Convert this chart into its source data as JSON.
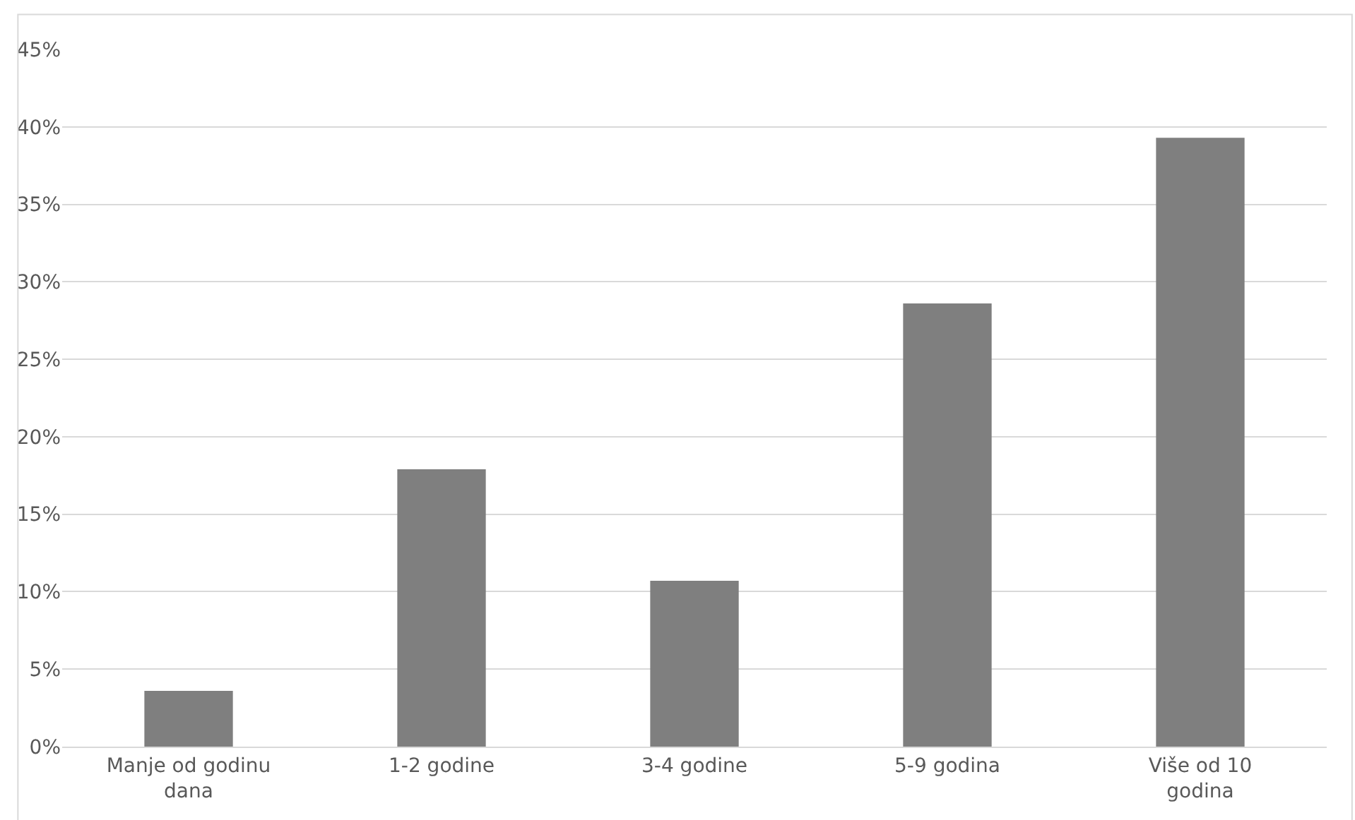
{
  "chart_data": {
    "type": "bar",
    "categories": [
      "Manje od godinu dana",
      "1-2 godine",
      "3-4 godine",
      "5-9 godina",
      "Više od 10 godina"
    ],
    "values": [
      3.6,
      17.9,
      10.7,
      28.6,
      39.3
    ],
    "color": "#7f7f7f",
    "ylim": [
      0,
      45
    ],
    "yticks": [
      {
        "value": 0,
        "label": "0%"
      },
      {
        "value": 5,
        "label": "5%"
      },
      {
        "value": 10,
        "label": "10%"
      },
      {
        "value": 15,
        "label": "15%"
      },
      {
        "value": 20,
        "label": "20%"
      },
      {
        "value": 25,
        "label": "25%"
      },
      {
        "value": 30,
        "label": "30%"
      },
      {
        "value": 35,
        "label": "35%"
      },
      {
        "value": 40,
        "label": "40%"
      },
      {
        "value": 45,
        "label": "45%"
      }
    ],
    "grid": "y"
  }
}
